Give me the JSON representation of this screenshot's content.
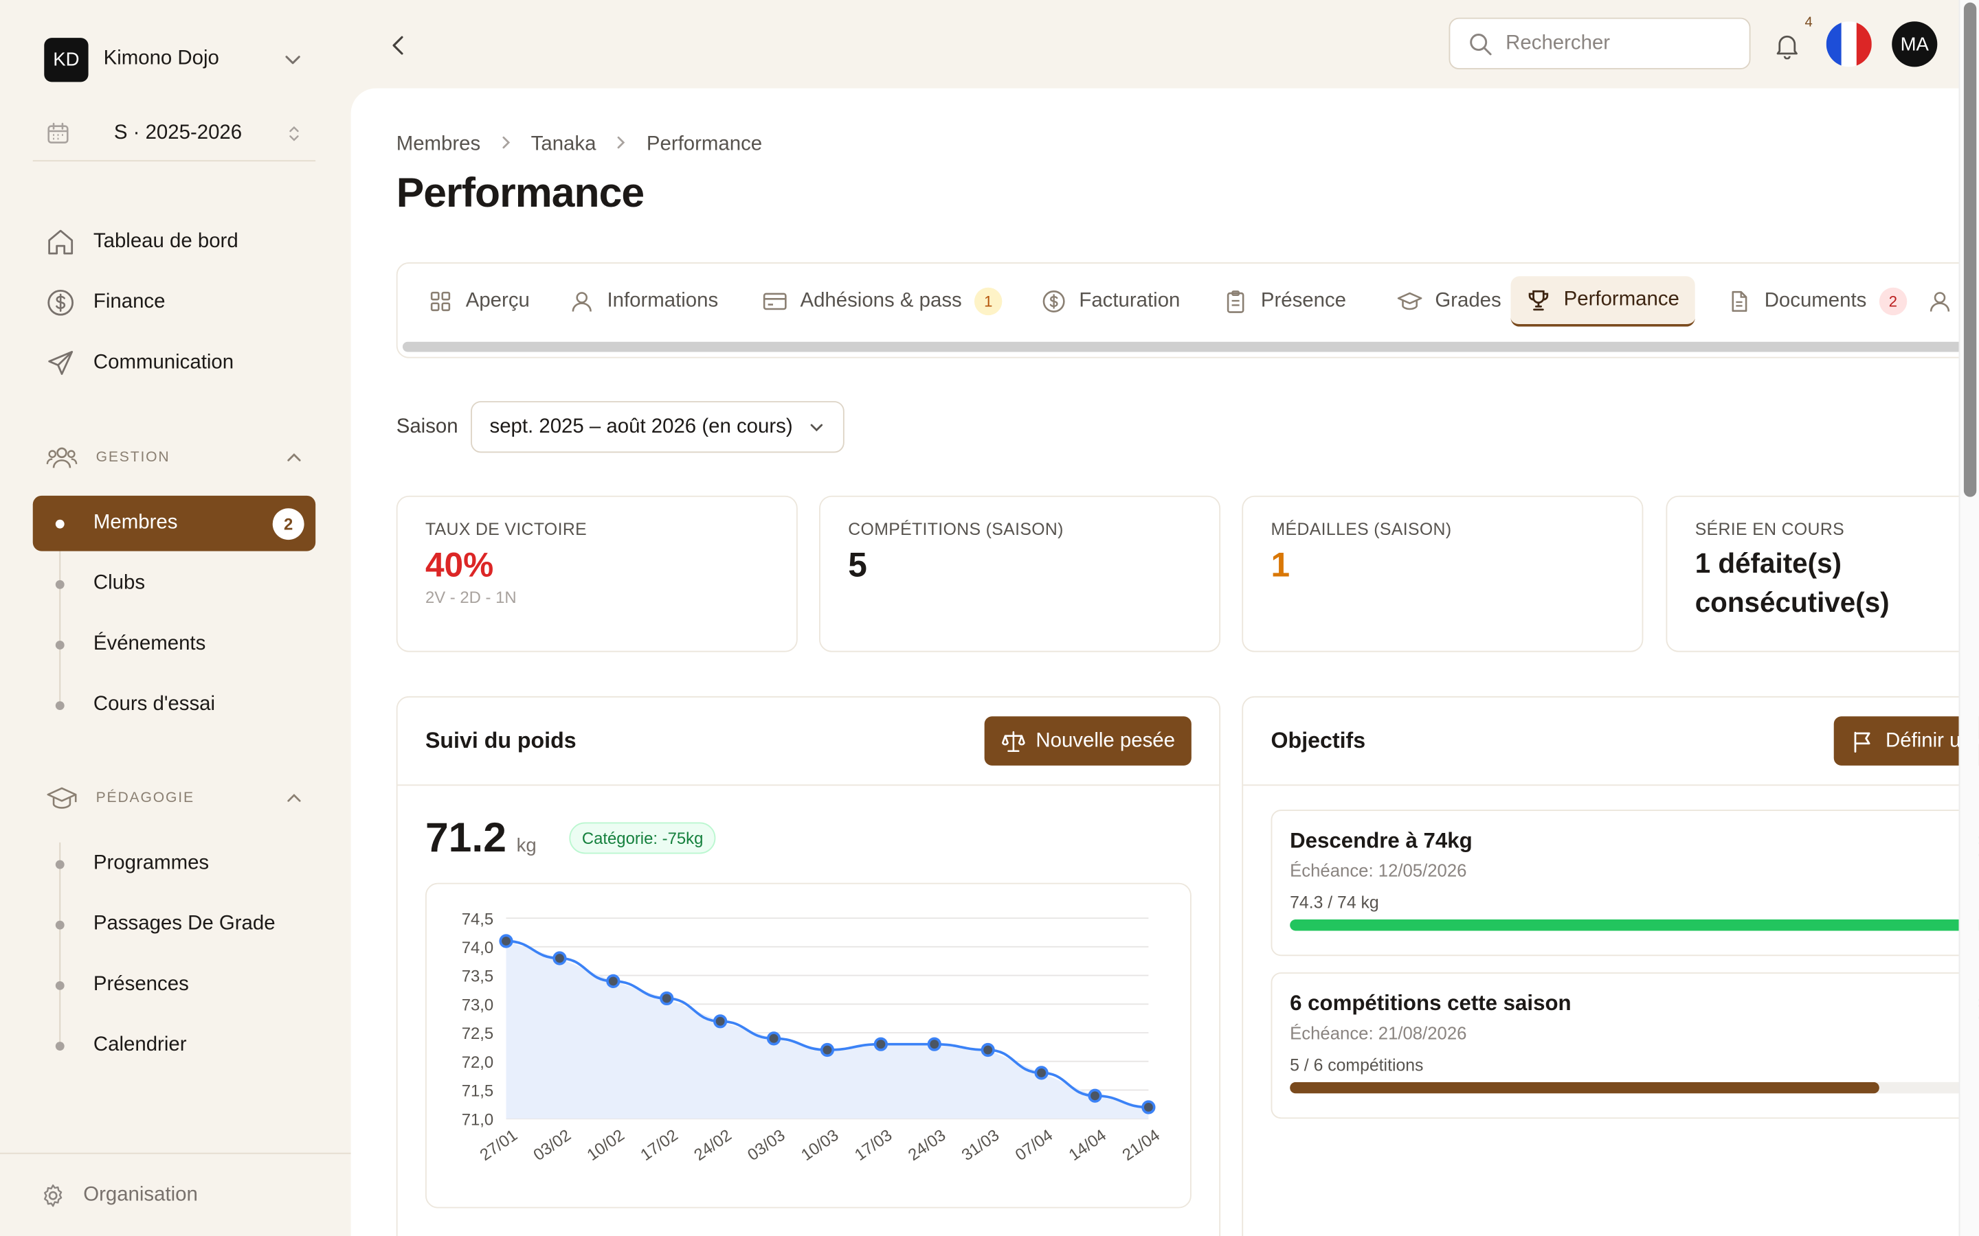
{
  "org": {
    "initials": "KD",
    "name": "Kimono Dojo"
  },
  "season_picker": {
    "label": "S · 2025-2026"
  },
  "nav": {
    "dashboard": "Tableau de bord",
    "finance": "Finance",
    "communication": "Communication"
  },
  "gestion": {
    "title": "GESTION",
    "items": [
      {
        "label": "Membres",
        "badge": "2"
      },
      {
        "label": "Clubs"
      },
      {
        "label": "Événements"
      },
      {
        "label": "Cours d'essai"
      }
    ]
  },
  "pedagogie": {
    "title": "PÉDAGOGIE",
    "items": [
      {
        "label": "Programmes"
      },
      {
        "label": "Passages De Grade"
      },
      {
        "label": "Présences"
      },
      {
        "label": "Calendrier"
      }
    ]
  },
  "footer": {
    "label": "Organisation"
  },
  "topbar": {
    "search_placeholder": "Rechercher",
    "notif_count": "4",
    "avatar": "MA"
  },
  "breadcrumb": [
    "Membres",
    "Tanaka",
    "Performance"
  ],
  "page_title": "Performance",
  "tabs": [
    {
      "label": "Aperçu",
      "icon": "grid-icon"
    },
    {
      "label": "Informations",
      "icon": "user-icon"
    },
    {
      "label": "Adhésions & pass",
      "icon": "card-icon",
      "badge": "1"
    },
    {
      "label": "Facturation",
      "icon": "dollar-icon"
    },
    {
      "label": "Présence",
      "icon": "clipboard-icon"
    },
    {
      "label": "Grades",
      "icon": "graduation-icon"
    },
    {
      "label": "Performance",
      "icon": "trophy-icon",
      "active": true
    },
    {
      "label": "Documents",
      "icon": "document-icon",
      "badge": "2"
    }
  ],
  "season_filter": {
    "label": "Saison",
    "value": "sept. 2025 – août 2026 (en cours)"
  },
  "stats": {
    "win_rate": {
      "label": "TAUX DE VICTOIRE",
      "value": "40%",
      "sub": "2V - 2D - 1N",
      "color": "#dc2626"
    },
    "competitions": {
      "label": "COMPÉTITIONS (SAISON)",
      "value": "5"
    },
    "medals": {
      "label": "MÉDAILLES (SAISON)",
      "value": "1",
      "color": "#d97706"
    },
    "streak": {
      "label": "SÉRIE EN COURS",
      "value_line1": "1 défaite(s)",
      "value_line2": "consécutive(s)"
    }
  },
  "weight": {
    "title": "Suivi du poids",
    "button": "Nouvelle pesée",
    "value": "71.2",
    "unit": "kg",
    "category": "Catégorie: -75kg"
  },
  "chart_data": {
    "type": "area",
    "x": [
      "27/01",
      "03/02",
      "10/02",
      "17/02",
      "24/02",
      "03/03",
      "10/03",
      "17/03",
      "24/03",
      "31/03",
      "07/04",
      "14/04",
      "21/04"
    ],
    "series": [
      {
        "values": [
          74.1,
          73.8,
          73.4,
          73.1,
          72.7,
          72.4,
          72.2,
          72.3,
          72.3,
          72.2,
          71.8,
          71.4,
          71.2
        ]
      }
    ],
    "yticks": [
      "74,5",
      "74,0",
      "73,5",
      "73,0",
      "72,5",
      "72,0",
      "71,5",
      "71,0"
    ],
    "ylim": [
      71.0,
      74.5
    ],
    "grid": true,
    "line_color": "#3b82f6",
    "fill_color": "#e8effc",
    "point_color": "#4b5563"
  },
  "goals": {
    "title": "Objectifs",
    "button": "Définir un o",
    "items": [
      {
        "title": "Descendre à 74kg",
        "due": "Échéance: 12/05/2026",
        "progress_text": "74.3 / 74 kg",
        "progress": 1.0,
        "color": "#22c55e"
      },
      {
        "title": "6 compétitions cette saison",
        "due": "Échéance: 21/08/2026",
        "progress_text": "5 / 6 compétitions",
        "progress": 0.8333,
        "color": "#7a4a1d"
      }
    ]
  }
}
